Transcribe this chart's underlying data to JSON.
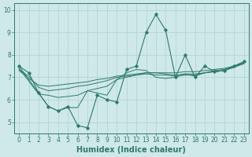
{
  "background_color": "#cfe8e8",
  "grid_color": "#b0d0d0",
  "line_color": "#2d7a6e",
  "xlabel": "Humidex (Indice chaleur)",
  "xlim": [
    -0.5,
    23.5
  ],
  "ylim": [
    4.5,
    10.3
  ],
  "yticks": [
    5,
    6,
    7,
    8,
    9,
    10
  ],
  "xticks": [
    0,
    1,
    2,
    3,
    4,
    5,
    6,
    7,
    8,
    9,
    10,
    11,
    12,
    13,
    14,
    15,
    16,
    17,
    18,
    19,
    20,
    21,
    22,
    23
  ],
  "series": [
    [
      0,
      7.5
    ],
    [
      1,
      7.2
    ],
    [
      2,
      6.3
    ],
    [
      3,
      5.7
    ],
    [
      4,
      5.5
    ],
    [
      5,
      5.7
    ],
    [
      6,
      4.85
    ],
    [
      7,
      4.75
    ],
    [
      8,
      6.2
    ],
    [
      9,
      6.0
    ],
    [
      10,
      5.9
    ],
    [
      11,
      7.35
    ],
    [
      12,
      7.5
    ],
    [
      13,
      9.0
    ],
    [
      14,
      9.8
    ],
    [
      15,
      9.1
    ],
    [
      16,
      7.0
    ],
    [
      17,
      8.0
    ],
    [
      18,
      7.0
    ],
    [
      19,
      7.5
    ],
    [
      20,
      7.25
    ],
    [
      21,
      7.3
    ],
    [
      22,
      7.5
    ],
    [
      23,
      7.7
    ]
  ],
  "extra_series": [
    [
      [
        0,
        7.5
      ],
      [
        2,
        6.3
      ],
      [
        3,
        5.7
      ],
      [
        4,
        5.5
      ],
      [
        5,
        5.65
      ],
      [
        6,
        5.65
      ],
      [
        7,
        6.4
      ],
      [
        8,
        6.3
      ],
      [
        9,
        6.2
      ],
      [
        10,
        6.9
      ],
      [
        11,
        7.2
      ],
      [
        12,
        7.35
      ],
      [
        13,
        7.3
      ],
      [
        14,
        7.0
      ],
      [
        15,
        6.95
      ],
      [
        16,
        7.0
      ],
      [
        17,
        7.15
      ],
      [
        18,
        7.05
      ],
      [
        19,
        7.2
      ],
      [
        20,
        7.25
      ],
      [
        21,
        7.3
      ],
      [
        22,
        7.45
      ],
      [
        23,
        7.65
      ]
    ],
    [
      [
        0,
        7.4
      ],
      [
        2,
        6.25
      ],
      [
        3,
        6.2
      ],
      [
        4,
        6.1
      ],
      [
        5,
        6.15
      ],
      [
        6,
        6.2
      ],
      [
        7,
        6.4
      ],
      [
        8,
        6.5
      ],
      [
        9,
        6.6
      ],
      [
        10,
        6.9
      ],
      [
        11,
        7.0
      ],
      [
        12,
        7.1
      ],
      [
        13,
        7.15
      ],
      [
        14,
        7.1
      ],
      [
        15,
        7.1
      ],
      [
        16,
        7.05
      ],
      [
        17,
        7.1
      ],
      [
        18,
        7.1
      ],
      [
        19,
        7.2
      ],
      [
        20,
        7.25
      ],
      [
        21,
        7.3
      ],
      [
        22,
        7.45
      ],
      [
        23,
        7.6
      ]
    ],
    [
      [
        0,
        7.35
      ],
      [
        1,
        7.05
      ],
      [
        2,
        6.55
      ],
      [
        3,
        6.4
      ],
      [
        4,
        6.45
      ],
      [
        5,
        6.5
      ],
      [
        6,
        6.6
      ],
      [
        7,
        6.65
      ],
      [
        8,
        6.75
      ],
      [
        9,
        6.85
      ],
      [
        10,
        7.0
      ],
      [
        11,
        7.05
      ],
      [
        12,
        7.1
      ],
      [
        13,
        7.2
      ],
      [
        14,
        7.2
      ],
      [
        15,
        7.15
      ],
      [
        16,
        7.1
      ],
      [
        17,
        7.15
      ],
      [
        18,
        7.15
      ],
      [
        19,
        7.2
      ],
      [
        20,
        7.3
      ],
      [
        21,
        7.35
      ],
      [
        22,
        7.5
      ],
      [
        23,
        7.65
      ]
    ],
    [
      [
        0,
        7.3
      ],
      [
        1,
        6.95
      ],
      [
        2,
        6.65
      ],
      [
        3,
        6.6
      ],
      [
        4,
        6.65
      ],
      [
        5,
        6.7
      ],
      [
        6,
        6.75
      ],
      [
        7,
        6.8
      ],
      [
        8,
        6.9
      ],
      [
        9,
        6.95
      ],
      [
        10,
        7.05
      ],
      [
        11,
        7.1
      ],
      [
        12,
        7.15
      ],
      [
        13,
        7.2
      ],
      [
        14,
        7.2
      ],
      [
        15,
        7.2
      ],
      [
        16,
        7.2
      ],
      [
        17,
        7.25
      ],
      [
        18,
        7.25
      ],
      [
        19,
        7.3
      ],
      [
        20,
        7.35
      ],
      [
        21,
        7.4
      ],
      [
        22,
        7.5
      ],
      [
        23,
        7.65
      ]
    ]
  ],
  "tick_fontsize": 5.5,
  "label_fontsize": 7
}
